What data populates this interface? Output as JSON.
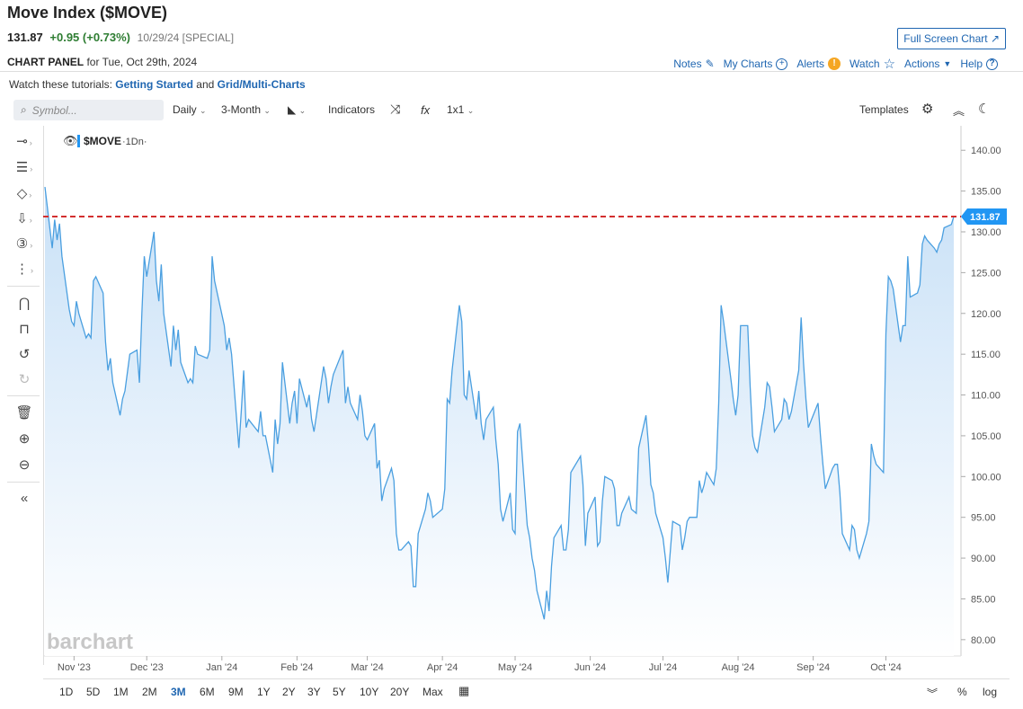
{
  "header": {
    "title": "Move Index ($MOVE)",
    "last": "131.87",
    "change": "+0.95 (+0.73%)",
    "date": "10/29/24 [SPECIAL]",
    "fullscreen_label": "Full Screen Chart ↗"
  },
  "panel": {
    "label": "CHART PANEL",
    "date_text": "for Tue, Oct 29th, 2024",
    "links": {
      "notes": "Notes",
      "my_charts": "My Charts",
      "alerts": "Alerts",
      "watch": "Watch",
      "actions": "Actions",
      "help": "Help"
    }
  },
  "tutorials": {
    "prefix": "Watch these tutorials:",
    "link1": "Getting Started",
    "and": "and",
    "link2": "Grid/Multi-Charts"
  },
  "toolbar": {
    "symbol_placeholder": "Symbol...",
    "interval": "Daily",
    "period": "3-Month",
    "indicators": "Indicators",
    "fx": "fx",
    "layout": "1x1",
    "templates": "Templates"
  },
  "legend": {
    "symbol": "$MOVE",
    "interval": "·1Dn·"
  },
  "watermark": "barchart",
  "range_buttons": [
    "1D",
    "5D",
    "1M",
    "2M",
    "3M",
    "6M",
    "9M",
    "1Y",
    "2Y",
    "3Y",
    "5Y",
    "10Y",
    "20Y",
    "Max"
  ],
  "active_range": "3M",
  "bottom_right": {
    "percent": "%",
    "log": "log"
  },
  "colors": {
    "line": "#4a9fe0",
    "fill_top": "#cfe4f7",
    "ref_line": "#d32f2f",
    "price_badge": "#2196f3",
    "accent": "#1f66b1"
  },
  "chart_data": {
    "type": "area",
    "series_name": "$MOVE",
    "last_value": 131.87,
    "last_label": "131.87",
    "ylim": [
      78,
      143
    ],
    "y_ticks": [
      80,
      85,
      90,
      95,
      100,
      105,
      110,
      115,
      120,
      125,
      130,
      135,
      140
    ],
    "y_tick_labels": [
      "80.00",
      "85.00",
      "90.00",
      "95.00",
      "100.00",
      "105.00",
      "110.00",
      "115.00",
      "120.00",
      "125.00",
      "130.00",
      "135.00",
      "140.00"
    ],
    "x_tick_labels": [
      "Nov '23",
      "Dec '23",
      "Jan '24",
      "Feb '24",
      "Mar '24",
      "Apr '24",
      "May '24",
      "Jun '24",
      "Jul '24",
      "Aug '24",
      "Sep '24",
      "Oct '24"
    ],
    "x_tick_dates": [
      "2023-11-01",
      "2023-12-01",
      "2024-01-01",
      "2024-02-01",
      "2024-03-01",
      "2024-04-01",
      "2024-05-01",
      "2024-06-01",
      "2024-07-01",
      "2024-08-01",
      "2024-09-01",
      "2024-10-01"
    ],
    "x_start": "2023-10-20",
    "x_end": "2024-10-29",
    "reference_line": 131.87,
    "points": [
      [
        "2023-10-20",
        135.5
      ],
      [
        "2023-10-23",
        128.0
      ],
      [
        "2023-10-24",
        131.5
      ],
      [
        "2023-10-25",
        129.0
      ],
      [
        "2023-10-26",
        131.0
      ],
      [
        "2023-10-27",
        127.0
      ],
      [
        "2023-10-30",
        120.5
      ],
      [
        "2023-10-31",
        119.0
      ],
      [
        "2023-11-01",
        118.5
      ],
      [
        "2023-11-02",
        121.5
      ],
      [
        "2023-11-03",
        120.0
      ],
      [
        "2023-11-06",
        117.0
      ],
      [
        "2023-11-07",
        117.5
      ],
      [
        "2023-11-08",
        117.0
      ],
      [
        "2023-11-09",
        124.0
      ],
      [
        "2023-11-10",
        124.5
      ],
      [
        "2023-11-13",
        122.5
      ],
      [
        "2023-11-14",
        116.5
      ],
      [
        "2023-11-15",
        113.0
      ],
      [
        "2023-11-16",
        114.5
      ],
      [
        "2023-11-17",
        111.5
      ],
      [
        "2023-11-20",
        107.5
      ],
      [
        "2023-11-21",
        109.5
      ],
      [
        "2023-11-22",
        110.5
      ],
      [
        "2023-11-24",
        115.0
      ],
      [
        "2023-11-27",
        115.5
      ],
      [
        "2023-11-28",
        111.5
      ],
      [
        "2023-11-29",
        120.0
      ],
      [
        "2023-11-30",
        127.0
      ],
      [
        "2023-12-01",
        124.5
      ],
      [
        "2023-12-04",
        130.0
      ],
      [
        "2023-12-05",
        124.0
      ],
      [
        "2023-12-06",
        121.5
      ],
      [
        "2023-12-07",
        126.0
      ],
      [
        "2023-12-08",
        120.0
      ],
      [
        "2023-12-11",
        113.5
      ],
      [
        "2023-12-12",
        118.5
      ],
      [
        "2023-12-13",
        115.5
      ],
      [
        "2023-12-14",
        118.0
      ],
      [
        "2023-12-15",
        114.0
      ],
      [
        "2023-12-18",
        111.5
      ],
      [
        "2023-12-19",
        112.0
      ],
      [
        "2023-12-20",
        111.5
      ],
      [
        "2023-12-21",
        116.0
      ],
      [
        "2023-12-22",
        115.0
      ],
      [
        "2023-12-26",
        114.5
      ],
      [
        "2023-12-27",
        115.5
      ],
      [
        "2023-12-28",
        127.0
      ],
      [
        "2023-12-29",
        124.0
      ],
      [
        "2024-01-02",
        118.5
      ],
      [
        "2024-01-03",
        115.5
      ],
      [
        "2024-01-04",
        117.0
      ],
      [
        "2024-01-05",
        115.0
      ],
      [
        "2024-01-08",
        103.5
      ],
      [
        "2024-01-09",
        108.0
      ],
      [
        "2024-01-10",
        113.0
      ],
      [
        "2024-01-11",
        106.0
      ],
      [
        "2024-01-12",
        107.0
      ],
      [
        "2024-01-16",
        105.5
      ],
      [
        "2024-01-17",
        108.0
      ],
      [
        "2024-01-18",
        105.0
      ],
      [
        "2024-01-19",
        105.0
      ],
      [
        "2024-01-22",
        100.5
      ],
      [
        "2024-01-23",
        107.0
      ],
      [
        "2024-01-24",
        104.0
      ],
      [
        "2024-01-25",
        106.5
      ],
      [
        "2024-01-26",
        114.0
      ],
      [
        "2024-01-29",
        106.5
      ],
      [
        "2024-01-30",
        109.0
      ],
      [
        "2024-01-31",
        110.5
      ],
      [
        "2024-02-01",
        106.5
      ],
      [
        "2024-02-02",
        112.0
      ],
      [
        "2024-02-05",
        108.5
      ],
      [
        "2024-02-06",
        110.0
      ],
      [
        "2024-02-07",
        107.0
      ],
      [
        "2024-02-08",
        105.5
      ],
      [
        "2024-02-09",
        107.5
      ],
      [
        "2024-02-12",
        113.5
      ],
      [
        "2024-02-13",
        112.0
      ],
      [
        "2024-02-14",
        109.0
      ],
      [
        "2024-02-15",
        111.0
      ],
      [
        "2024-02-16",
        112.5
      ],
      [
        "2024-02-20",
        115.5
      ],
      [
        "2024-02-21",
        109.0
      ],
      [
        "2024-02-22",
        111.0
      ],
      [
        "2024-02-23",
        109.0
      ],
      [
        "2024-02-26",
        107.0
      ],
      [
        "2024-02-27",
        110.0
      ],
      [
        "2024-02-28",
        108.0
      ],
      [
        "2024-02-29",
        105.0
      ],
      [
        "2024-03-01",
        104.5
      ],
      [
        "2024-03-04",
        106.5
      ],
      [
        "2024-03-05",
        101.0
      ],
      [
        "2024-03-06",
        102.0
      ],
      [
        "2024-03-07",
        97.0
      ],
      [
        "2024-03-08",
        98.5
      ],
      [
        "2024-03-11",
        101.0
      ],
      [
        "2024-03-12",
        99.5
      ],
      [
        "2024-03-13",
        93.0
      ],
      [
        "2024-03-14",
        91.0
      ],
      [
        "2024-03-15",
        91.0
      ],
      [
        "2024-03-18",
        92.0
      ],
      [
        "2024-03-19",
        91.5
      ],
      [
        "2024-03-20",
        86.5
      ],
      [
        "2024-03-21",
        86.5
      ],
      [
        "2024-03-22",
        93.0
      ],
      [
        "2024-03-25",
        96.0
      ],
      [
        "2024-03-26",
        98.0
      ],
      [
        "2024-03-27",
        97.0
      ],
      [
        "2024-03-28",
        95.0
      ],
      [
        "2024-04-01",
        96.0
      ],
      [
        "2024-04-02",
        98.5
      ],
      [
        "2024-04-03",
        109.5
      ],
      [
        "2024-04-04",
        109.0
      ],
      [
        "2024-04-05",
        113.0
      ],
      [
        "2024-04-08",
        121.0
      ],
      [
        "2024-04-09",
        119.0
      ],
      [
        "2024-04-10",
        110.0
      ],
      [
        "2024-04-11",
        109.5
      ],
      [
        "2024-04-12",
        113.0
      ],
      [
        "2024-04-15",
        107.0
      ],
      [
        "2024-04-16",
        110.5
      ],
      [
        "2024-04-17",
        106.5
      ],
      [
        "2024-04-18",
        104.5
      ],
      [
        "2024-04-19",
        107.0
      ],
      [
        "2024-04-22",
        108.5
      ],
      [
        "2024-04-23",
        104.5
      ],
      [
        "2024-04-24",
        101.5
      ],
      [
        "2024-04-25",
        96.0
      ],
      [
        "2024-04-26",
        94.5
      ],
      [
        "2024-04-29",
        98.0
      ],
      [
        "2024-04-30",
        93.5
      ],
      [
        "2024-05-01",
        93.0
      ],
      [
        "2024-05-02",
        105.5
      ],
      [
        "2024-05-03",
        106.5
      ],
      [
        "2024-05-06",
        94.0
      ],
      [
        "2024-05-07",
        92.5
      ],
      [
        "2024-05-08",
        90.0
      ],
      [
        "2024-05-09",
        88.5
      ],
      [
        "2024-05-10",
        86.0
      ],
      [
        "2024-05-13",
        82.5
      ],
      [
        "2024-05-14",
        86.0
      ],
      [
        "2024-05-15",
        83.5
      ],
      [
        "2024-05-16",
        89.0
      ],
      [
        "2024-05-17",
        92.5
      ],
      [
        "2024-05-20",
        94.0
      ],
      [
        "2024-05-21",
        91.0
      ],
      [
        "2024-05-22",
        91.0
      ],
      [
        "2024-05-23",
        93.5
      ],
      [
        "2024-05-24",
        100.5
      ],
      [
        "2024-05-28",
        102.5
      ],
      [
        "2024-05-29",
        99.0
      ],
      [
        "2024-05-30",
        91.5
      ],
      [
        "2024-05-31",
        95.5
      ],
      [
        "2024-06-03",
        97.5
      ],
      [
        "2024-06-04",
        91.5
      ],
      [
        "2024-06-05",
        92.0
      ],
      [
        "2024-06-06",
        97.0
      ],
      [
        "2024-06-07",
        100.0
      ],
      [
        "2024-06-10",
        99.5
      ],
      [
        "2024-06-11",
        98.5
      ],
      [
        "2024-06-12",
        94.0
      ],
      [
        "2024-06-13",
        94.0
      ],
      [
        "2024-06-14",
        95.5
      ],
      [
        "2024-06-17",
        97.5
      ],
      [
        "2024-06-18",
        96.0
      ],
      [
        "2024-06-20",
        95.5
      ],
      [
        "2024-06-21",
        103.5
      ],
      [
        "2024-06-24",
        107.5
      ],
      [
        "2024-06-25",
        104.0
      ],
      [
        "2024-06-26",
        99.0
      ],
      [
        "2024-06-27",
        98.0
      ],
      [
        "2024-06-28",
        95.5
      ],
      [
        "2024-07-01",
        92.5
      ],
      [
        "2024-07-02",
        90.0
      ],
      [
        "2024-07-03",
        87.0
      ],
      [
        "2024-07-05",
        94.5
      ],
      [
        "2024-07-08",
        94.0
      ],
      [
        "2024-07-09",
        91.0
      ],
      [
        "2024-07-10",
        92.5
      ],
      [
        "2024-07-11",
        94.5
      ],
      [
        "2024-07-12",
        95.0
      ],
      [
        "2024-07-15",
        95.0
      ],
      [
        "2024-07-16",
        99.5
      ],
      [
        "2024-07-17",
        98.0
      ],
      [
        "2024-07-18",
        99.0
      ],
      [
        "2024-07-19",
        100.5
      ],
      [
        "2024-07-22",
        99.0
      ],
      [
        "2024-07-23",
        101.0
      ],
      [
        "2024-07-24",
        109.0
      ],
      [
        "2024-07-25",
        121.0
      ],
      [
        "2024-07-26",
        119.0
      ],
      [
        "2024-07-29",
        112.0
      ],
      [
        "2024-07-30",
        109.5
      ],
      [
        "2024-07-31",
        107.5
      ],
      [
        "2024-08-01",
        110.0
      ],
      [
        "2024-08-02",
        118.5
      ],
      [
        "2024-08-05",
        118.5
      ],
      [
        "2024-08-06",
        111.0
      ],
      [
        "2024-08-07",
        105.0
      ],
      [
        "2024-08-08",
        103.5
      ],
      [
        "2024-08-09",
        103.0
      ],
      [
        "2024-08-12",
        108.5
      ],
      [
        "2024-08-13",
        111.5
      ],
      [
        "2024-08-14",
        111.0
      ],
      [
        "2024-08-15",
        108.5
      ],
      [
        "2024-08-16",
        105.5
      ],
      [
        "2024-08-19",
        107.0
      ],
      [
        "2024-08-20",
        109.5
      ],
      [
        "2024-08-21",
        109.0
      ],
      [
        "2024-08-22",
        107.0
      ],
      [
        "2024-08-23",
        108.0
      ],
      [
        "2024-08-26",
        113.0
      ],
      [
        "2024-08-27",
        119.5
      ],
      [
        "2024-08-28",
        114.0
      ],
      [
        "2024-08-29",
        109.5
      ],
      [
        "2024-08-30",
        106.0
      ],
      [
        "2024-09-03",
        109.0
      ],
      [
        "2024-09-04",
        105.0
      ],
      [
        "2024-09-05",
        101.5
      ],
      [
        "2024-09-06",
        98.5
      ],
      [
        "2024-09-09",
        101.0
      ],
      [
        "2024-09-10",
        101.5
      ],
      [
        "2024-09-11",
        101.5
      ],
      [
        "2024-09-12",
        98.0
      ],
      [
        "2024-09-13",
        93.0
      ],
      [
        "2024-09-16",
        91.0
      ],
      [
        "2024-09-17",
        94.0
      ],
      [
        "2024-09-18",
        93.5
      ],
      [
        "2024-09-19",
        91.0
      ],
      [
        "2024-09-20",
        90.0
      ],
      [
        "2024-09-23",
        93.0
      ],
      [
        "2024-09-24",
        94.5
      ],
      [
        "2024-09-25",
        104.0
      ],
      [
        "2024-09-26",
        102.5
      ],
      [
        "2024-09-27",
        101.5
      ],
      [
        "2024-09-30",
        100.5
      ],
      [
        "2024-10-01",
        117.5
      ],
      [
        "2024-10-02",
        124.5
      ],
      [
        "2024-10-03",
        124.0
      ],
      [
        "2024-10-04",
        123.0
      ],
      [
        "2024-10-07",
        116.5
      ],
      [
        "2024-10-08",
        118.5
      ],
      [
        "2024-10-09",
        118.5
      ],
      [
        "2024-10-10",
        127.0
      ],
      [
        "2024-10-11",
        122.0
      ],
      [
        "2024-10-14",
        122.5
      ],
      [
        "2024-10-15",
        123.5
      ],
      [
        "2024-10-16",
        128.5
      ],
      [
        "2024-10-17",
        129.5
      ],
      [
        "2024-10-18",
        129.0
      ],
      [
        "2024-10-21",
        128.0
      ],
      [
        "2024-10-22",
        127.5
      ],
      [
        "2024-10-23",
        128.5
      ],
      [
        "2024-10-24",
        129.0
      ],
      [
        "2024-10-25",
        130.5
      ],
      [
        "2024-10-28",
        130.9
      ],
      [
        "2024-10-29",
        131.87
      ]
    ]
  }
}
